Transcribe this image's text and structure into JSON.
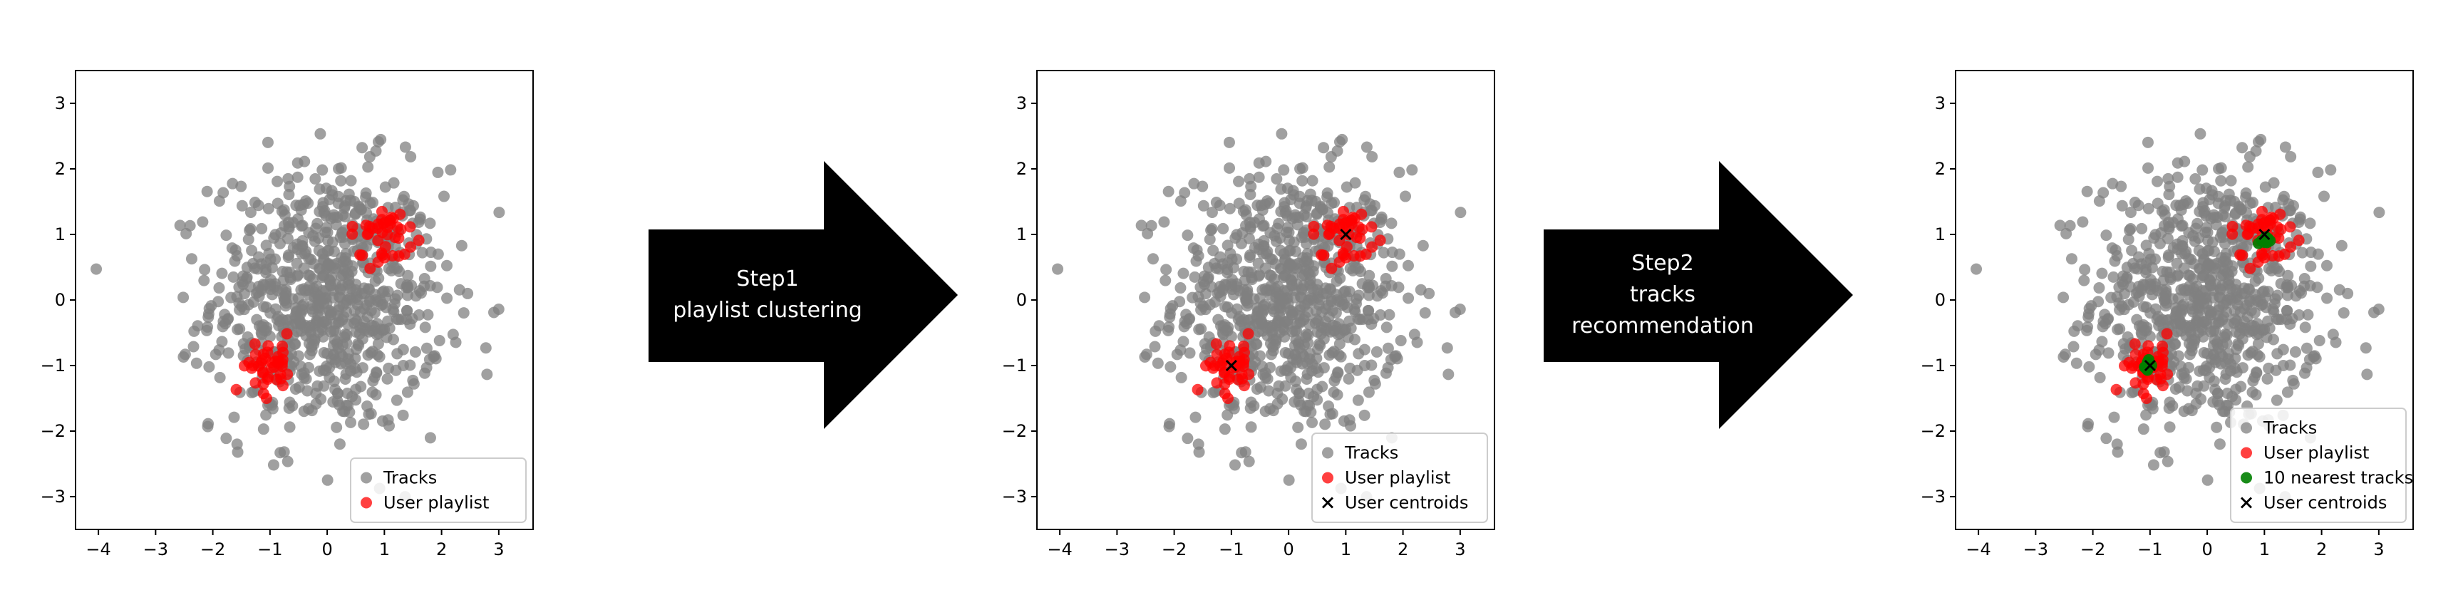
{
  "panels": [
    {
      "chart_data": {
        "type": "scatter",
        "xlim": [
          -4.4,
          3.6
        ],
        "ylim": [
          -3.5,
          3.5
        ],
        "xticks": [
          -4,
          -3,
          -2,
          -1,
          0,
          1,
          2,
          3
        ],
        "yticks": [
          3,
          2,
          1,
          0,
          -1,
          -2,
          -3
        ],
        "grid": false,
        "legend_position": "bottom-right",
        "background_cloud": {
          "label": "Tracks",
          "center": [
            0,
            0
          ],
          "spread": 1.0,
          "count": 800
        },
        "series": [
          {
            "name": "Tracks",
            "marker": "circle",
            "color": "#808080",
            "alpha": 0.75
          },
          {
            "name": "User playlist",
            "marker": "circle",
            "color": "#ff0000",
            "alpha": 0.75,
            "clusters": [
              {
                "center": [
                  1.0,
                  1.0
                ],
                "spread": 0.25,
                "count": 40
              },
              {
                "center": [
                  -1.0,
                  -1.0
                ],
                "spread": 0.25,
                "count": 40
              }
            ]
          }
        ]
      },
      "legend": [
        "Tracks",
        "User playlist"
      ]
    },
    {
      "chart_data": {
        "type": "scatter",
        "xlim": [
          -4.4,
          3.6
        ],
        "ylim": [
          -3.5,
          3.5
        ],
        "xticks": [
          -4,
          -3,
          -2,
          -1,
          0,
          1,
          2,
          3
        ],
        "yticks": [
          3,
          2,
          1,
          0,
          -1,
          -2,
          -3
        ],
        "grid": false,
        "legend_position": "bottom-right",
        "background_cloud": {
          "label": "Tracks",
          "center": [
            0,
            0
          ],
          "spread": 1.0,
          "count": 800
        },
        "series": [
          {
            "name": "Tracks",
            "marker": "circle",
            "color": "#808080",
            "alpha": 0.75
          },
          {
            "name": "User playlist",
            "marker": "circle",
            "color": "#ff0000",
            "alpha": 0.75,
            "clusters": [
              {
                "center": [
                  1.0,
                  1.0
                ],
                "spread": 0.25,
                "count": 40
              },
              {
                "center": [
                  -1.0,
                  -1.0
                ],
                "spread": 0.25,
                "count": 40
              }
            ]
          },
          {
            "name": "User centroids",
            "marker": "x",
            "color": "#000000",
            "points": [
              [
                1.0,
                1.0
              ],
              [
                -1.0,
                -1.0
              ]
            ]
          }
        ]
      },
      "legend": [
        "Tracks",
        "User playlist",
        "User centroids"
      ]
    },
    {
      "chart_data": {
        "type": "scatter",
        "xlim": [
          -4.4,
          3.6
        ],
        "ylim": [
          -3.5,
          3.5
        ],
        "xticks": [
          -4,
          -3,
          -2,
          -1,
          0,
          1,
          2,
          3
        ],
        "yticks": [
          3,
          2,
          1,
          0,
          -1,
          -2,
          -3
        ],
        "grid": false,
        "legend_position": "bottom-right",
        "background_cloud": {
          "label": "Tracks",
          "center": [
            0,
            0
          ],
          "spread": 1.0,
          "count": 800
        },
        "series": [
          {
            "name": "Tracks",
            "marker": "circle",
            "color": "#808080",
            "alpha": 0.75
          },
          {
            "name": "User playlist",
            "marker": "circle",
            "color": "#ff0000",
            "alpha": 0.75,
            "clusters": [
              {
                "center": [
                  1.0,
                  1.0
                ],
                "spread": 0.25,
                "count": 40
              },
              {
                "center": [
                  -1.0,
                  -1.0
                ],
                "spread": 0.25,
                "count": 40
              }
            ]
          },
          {
            "name": "10 nearest tracks",
            "marker": "circle",
            "color": "#008000",
            "alpha": 0.9,
            "clusters": [
              {
                "center": [
                  1.0,
                  0.92
                ],
                "spread": 0.06,
                "count": 10
              },
              {
                "center": [
                  -1.0,
                  -0.98
                ],
                "spread": 0.06,
                "count": 10
              }
            ]
          },
          {
            "name": "User centroids",
            "marker": "x",
            "color": "#000000",
            "points": [
              [
                1.0,
                1.0
              ],
              [
                -1.0,
                -1.0
              ]
            ]
          }
        ]
      },
      "legend": [
        "Tracks",
        "User playlist",
        "10 nearest tracks",
        "User centroids"
      ]
    }
  ],
  "arrows": [
    {
      "lines": [
        "Step1",
        "playlist clustering"
      ]
    },
    {
      "lines": [
        "Step2",
        "tracks",
        "recommendation"
      ]
    }
  ],
  "colors": {
    "arrow": "#000000",
    "arrow_text": "#ffffff",
    "axis": "#000000"
  }
}
